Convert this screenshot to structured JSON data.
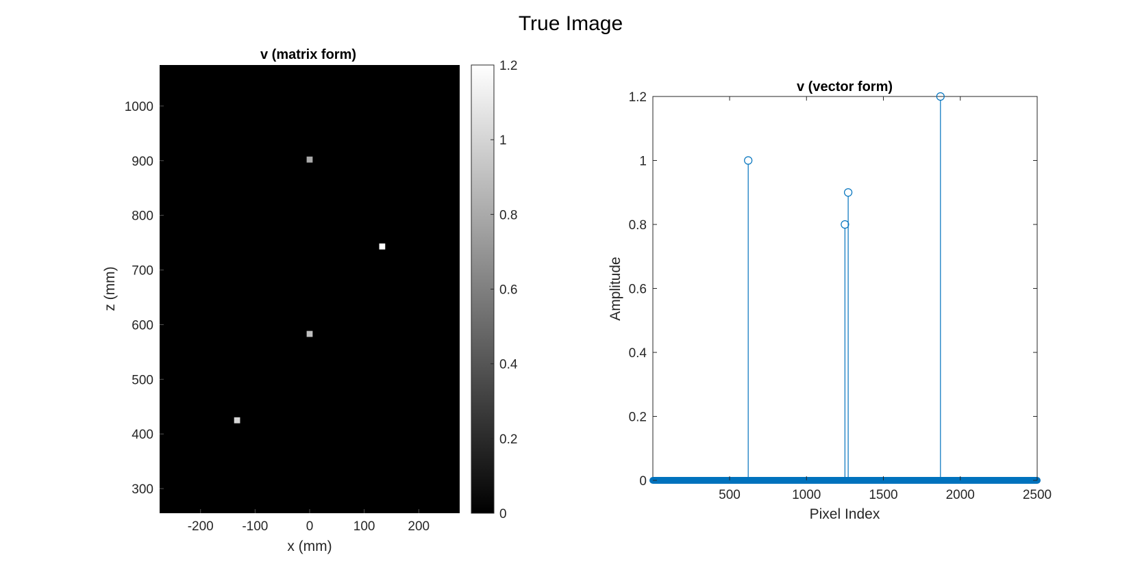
{
  "figure": {
    "title": "True Image"
  },
  "chart_data": [
    {
      "type": "heatmap",
      "title": "v (matrix form)",
      "xlabel": "x (mm)",
      "ylabel": "z (mm)",
      "xlim": [
        -275,
        275
      ],
      "ylim": [
        255,
        1075
      ],
      "xticks": [
        -200,
        -100,
        0,
        100,
        200
      ],
      "xtick_labels": [
        "-200",
        "-100",
        "0",
        "100",
        "200"
      ],
      "yticks": [
        300,
        400,
        500,
        600,
        700,
        800,
        900,
        1000
      ],
      "ytick_labels": [
        "300",
        "400",
        "500",
        "600",
        "700",
        "800",
        "900",
        "1000"
      ],
      "colormap": "gray",
      "clim": [
        0,
        1.2
      ],
      "background_value": 0,
      "pixel_size_mm": 11,
      "points": [
        {
          "x": 0,
          "z": 902,
          "value": 0.8
        },
        {
          "x": 133,
          "z": 743,
          "value": 1.2
        },
        {
          "x": 0,
          "z": 583,
          "value": 0.9
        },
        {
          "x": -133,
          "z": 425,
          "value": 1.0
        }
      ],
      "colorbar": {
        "ticks": [
          0,
          0.2,
          0.4,
          0.6,
          0.8,
          1,
          1.2
        ],
        "tick_labels": [
          "0",
          "0.2",
          "0.4",
          "0.6",
          "0.8",
          "1",
          "1.2"
        ]
      }
    },
    {
      "type": "stem",
      "title": "v (vector form)",
      "xlabel": "Pixel Index",
      "ylabel": "Amplitude",
      "xlim": [
        1,
        2500
      ],
      "ylim": [
        0,
        1.2
      ],
      "xticks": [
        500,
        1000,
        1500,
        2000,
        2500
      ],
      "xtick_labels": [
        "500",
        "1000",
        "1500",
        "2000",
        "2500"
      ],
      "yticks": [
        0,
        0.2,
        0.4,
        0.6,
        0.8,
        1,
        1.2
      ],
      "ytick_labels": [
        "0",
        "0.2",
        "0.4",
        "0.6",
        "0.8",
        "1",
        "1.2"
      ],
      "color": "#0072BD",
      "n_points": 2500,
      "baseline_value": 0,
      "nonzero": [
        {
          "x": 621,
          "y": 1.0
        },
        {
          "x": 1250,
          "y": 0.8
        },
        {
          "x": 1271,
          "y": 0.9
        },
        {
          "x": 1871,
          "y": 1.2
        }
      ]
    }
  ]
}
